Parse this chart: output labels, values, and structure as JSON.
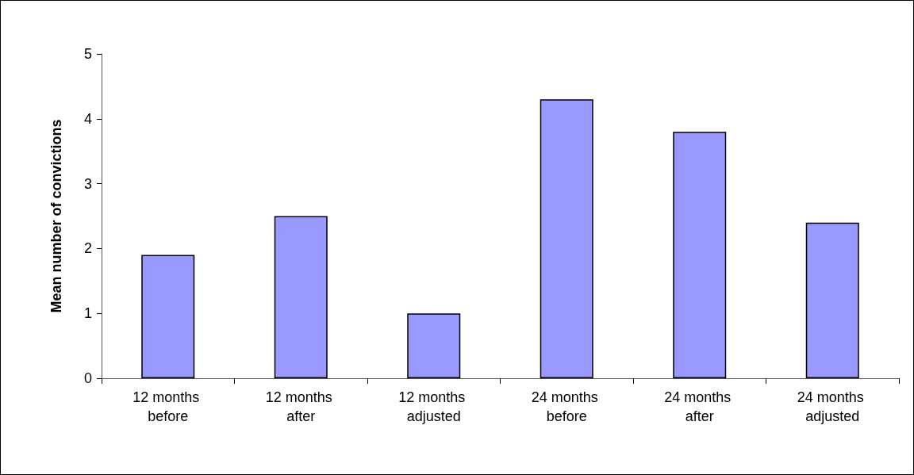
{
  "chart_data": {
    "type": "bar",
    "ylabel": "Mean number of convictions",
    "categories": [
      "12 months before",
      "12 months after",
      "12 months adjusted",
      "24 months before",
      "24 months after",
      "24 months adjusted"
    ],
    "values": [
      1.9,
      2.5,
      1.0,
      4.3,
      3.8,
      2.4
    ],
    "color": "#9999ff",
    "ylim": [
      0,
      5
    ],
    "yticks": [
      0,
      1,
      2,
      3,
      4,
      5
    ],
    "grid": false
  }
}
